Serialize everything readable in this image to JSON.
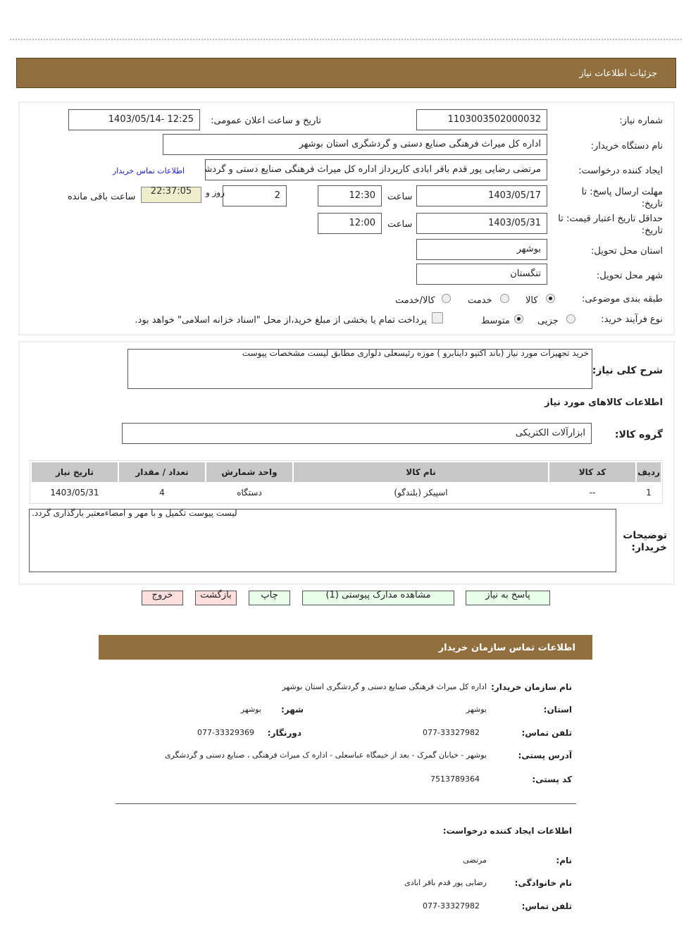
{
  "header": {
    "title": "جزئیات اطلاعات نیاز"
  },
  "form": {
    "need_number_label": "شماره نیاز:",
    "need_number": "1103003502000032",
    "announce_label": "تاریخ و ساعت اعلان عمومی:",
    "announce_value": "1403/05/14- 12:25",
    "buyer_label": "نام دستگاه خریدار:",
    "buyer_value": "اداره کل میراث فرهنگی صنایع دستی و گردشگری استان بوشهر",
    "creator_label": "ایجاد کننده درخواست:",
    "creator_value": "مرتضی رضایی پور قدم باقر ابادی کارپرداز اداره کل میراث فرهنگی صنایع دستی و گردشگری استان بوشهر",
    "contact_link": "اطلاعات تماس خریدار",
    "deadline_label": "مهلت ارسال پاسخ: تا تاریخ:",
    "deadline_date": "1403/05/17",
    "time_label": "ساعت",
    "deadline_time": "12:30",
    "days_value": "2",
    "days_label": "روز و",
    "remaining_time": "22:37:05",
    "remaining_label": "ساعت باقی مانده",
    "validity_label": "حداقل تاریخ اعتبار قیمت: تا تاریخ:",
    "validity_date": "1403/05/31",
    "validity_time": "12:00",
    "province_label": "استان محل تحویل:",
    "province_value": "بوشهر",
    "city_label": "شهر محل تحویل:",
    "city_value": "تنگستان",
    "category_label": "طبقه بندی موضوعی:",
    "category_options": [
      "کالا",
      "خدمت",
      "کالا/خدمت"
    ],
    "category_selected": "کالا",
    "process_label": "نوع فرآیند خرید:",
    "process_options": [
      "جزیی",
      "متوسط"
    ],
    "process_selected": "متوسط",
    "treasury_note": "پرداخت تمام یا بخشی از مبلغ خرید،از محل \"اسناد خزانه اسلامی\" خواهد بود."
  },
  "details": {
    "desc_label": "شرح کلی نیاز:",
    "desc_value": "خرید تجهیزات مورد نیاز (باند اکتیو داینابرو ) موزه رئیسعلی دلواری مطابق لیست مشخصات پیوست",
    "goods_info_title": "اطلاعات کالاهای مورد نیاز",
    "group_label": "گروه کالا:",
    "group_value": "ابزارآلات الکتریکی",
    "table": {
      "headers": [
        "ردیف",
        "کد کالا",
        "نام کالا",
        "واحد شمارش",
        "تعداد / مقدار",
        "تاریخ نیاز"
      ],
      "rows": [
        [
          "1",
          "--",
          "اسپیکر (بلندگو)",
          "دستگاه",
          "4",
          "1403/05/31"
        ]
      ]
    },
    "buyer_notes_label": "توضیحات خریدار:",
    "buyer_notes_value": ".لیست پیوست تکمیل و با مهر و امضاءمعتبر بارگذاری گردد"
  },
  "buttons": {
    "reply": "پاسخ به نیاز",
    "attachments": "مشاهده مدارک پیوستی (1)",
    "print": "چاپ",
    "back": "بازگشت",
    "exit": "خروج"
  },
  "contact": {
    "title": "اطلاعات تماس سازمان خریدار",
    "org_label": "نام سازمان خریدار:",
    "org_value": "اداره کل میراث فرهنگی  صنایع دستی و گردشگری استان بوشهر",
    "province_label": "استان:",
    "province_value": "بوشهر",
    "city_label": "شهر:",
    "city_value": "بوشهر",
    "phone_label": "تلفن تماس:",
    "phone_value": "077-33327982",
    "fax_label": "دورنگار:",
    "fax_value": "077-33329369",
    "address_label": "آدرس پستی:",
    "address_value": "بوشهر - خیابان گمرک - بعد از خیمگاه عباسعلی - اداره ک میراث فرهنگی ، صنایع دستی و گردشگری",
    "postal_label": "کد پستی:",
    "postal_value": "7513789364",
    "creator_title": "اطلاعات ایجاد کننده درخواست:",
    "name_label": "نام:",
    "name_value": "مرتضی",
    "family_label": "نام خانوادگی:",
    "family_value": "رضایی پور قدم باقر ابادی",
    "creator_phone_label": "تلفن تماس:",
    "creator_phone_value": "077-33327982"
  },
  "colors": {
    "header_bar": "#926f3f",
    "green_button": "#eaffea",
    "red_button": "#ffdede",
    "timer_bg": "#eeeecc"
  }
}
